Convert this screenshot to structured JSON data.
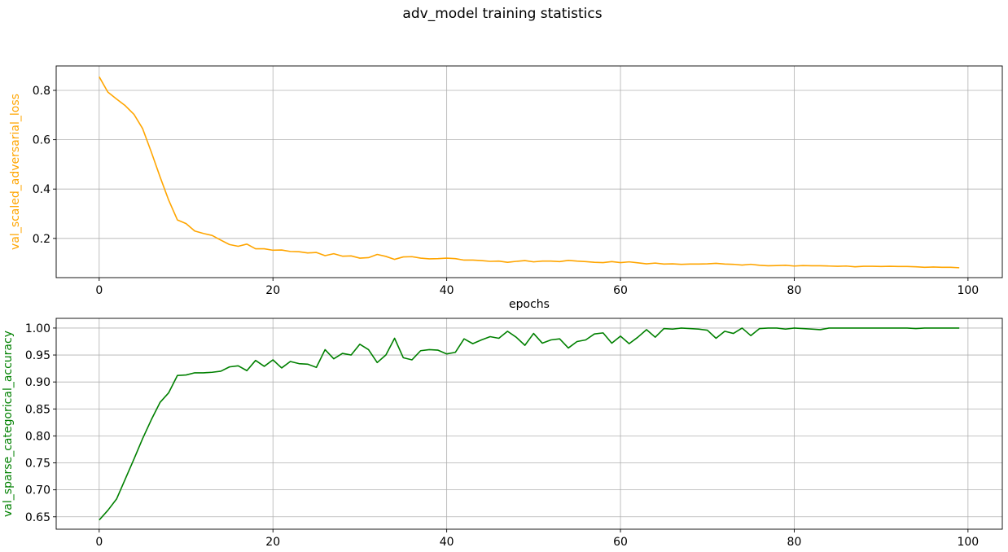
{
  "title": "adv_model training statistics",
  "chart_data": [
    {
      "type": "line",
      "xlabel": "epochs",
      "ylabel": "val_scaled_adversarial_loss",
      "color": "#ffa500",
      "xlim": [
        -4.95,
        103.95
      ],
      "ylim": [
        0.041,
        0.899
      ],
      "xticks": [
        0,
        20,
        40,
        60,
        80,
        100
      ],
      "yticks": [
        0.2,
        0.4,
        0.6,
        0.8
      ],
      "grid": true,
      "x_start": 0,
      "x_step": 1,
      "series": [
        {
          "values": [
            0.855,
            0.793,
            0.765,
            0.738,
            0.703,
            0.645,
            0.55,
            0.45,
            0.355,
            0.275,
            0.26,
            0.23,
            0.22,
            0.212,
            0.193,
            0.175,
            0.168,
            0.177,
            0.158,
            0.158,
            0.152,
            0.153,
            0.147,
            0.146,
            0.141,
            0.143,
            0.13,
            0.138,
            0.128,
            0.129,
            0.12,
            0.122,
            0.135,
            0.127,
            0.115,
            0.125,
            0.126,
            0.12,
            0.117,
            0.118,
            0.12,
            0.118,
            0.112,
            0.112,
            0.11,
            0.107,
            0.108,
            0.103,
            0.107,
            0.11,
            0.105,
            0.108,
            0.108,
            0.106,
            0.111,
            0.108,
            0.106,
            0.103,
            0.102,
            0.106,
            0.102,
            0.105,
            0.101,
            0.097,
            0.1,
            0.096,
            0.097,
            0.095,
            0.096,
            0.096,
            0.097,
            0.099,
            0.096,
            0.095,
            0.092,
            0.095,
            0.091,
            0.089,
            0.09,
            0.091,
            0.088,
            0.09,
            0.089,
            0.089,
            0.088,
            0.087,
            0.088,
            0.085,
            0.087,
            0.087,
            0.086,
            0.087,
            0.086,
            0.086,
            0.085,
            0.083,
            0.084,
            0.083,
            0.083,
            0.081
          ]
        }
      ]
    },
    {
      "type": "line",
      "xlabel": "",
      "ylabel": "val_sparse_categorical_accuracy",
      "color": "#008000",
      "xlim": [
        -4.95,
        103.95
      ],
      "ylim": [
        0.627,
        1.018
      ],
      "xticks": [
        0,
        20,
        40,
        60,
        80,
        100
      ],
      "yticks": [
        0.65,
        0.7,
        0.75,
        0.8,
        0.85,
        0.9,
        0.95,
        1.0
      ],
      "ytick_labels": [
        "0.65",
        "0.70",
        "0.75",
        "0.80",
        "0.85",
        "0.90",
        "0.95",
        "1.00"
      ],
      "grid": true,
      "x_start": 0,
      "x_step": 1,
      "series": [
        {
          "values": [
            0.644,
            0.662,
            0.683,
            0.72,
            0.757,
            0.795,
            0.83,
            0.862,
            0.88,
            0.912,
            0.913,
            0.917,
            0.917,
            0.918,
            0.92,
            0.928,
            0.93,
            0.921,
            0.94,
            0.929,
            0.941,
            0.926,
            0.938,
            0.934,
            0.933,
            0.927,
            0.96,
            0.943,
            0.953,
            0.95,
            0.97,
            0.96,
            0.936,
            0.95,
            0.981,
            0.945,
            0.941,
            0.958,
            0.96,
            0.959,
            0.952,
            0.955,
            0.98,
            0.971,
            0.978,
            0.984,
            0.981,
            0.994,
            0.983,
            0.968,
            0.99,
            0.972,
            0.978,
            0.98,
            0.963,
            0.975,
            0.978,
            0.989,
            0.991,
            0.972,
            0.985,
            0.971,
            0.983,
            0.997,
            0.983,
            0.999,
            0.998,
            1.0,
            0.999,
            0.998,
            0.996,
            0.981,
            0.994,
            0.99,
            1.0,
            0.986,
            0.999,
            1.0,
            1.0,
            0.998,
            1.0,
            0.999,
            0.998,
            0.997,
            1.0,
            1.0,
            1.0,
            1.0,
            1.0,
            1.0,
            1.0,
            1.0,
            1.0,
            1.0,
            0.999,
            1.0,
            1.0,
            1.0,
            1.0,
            1.0
          ]
        }
      ]
    }
  ]
}
